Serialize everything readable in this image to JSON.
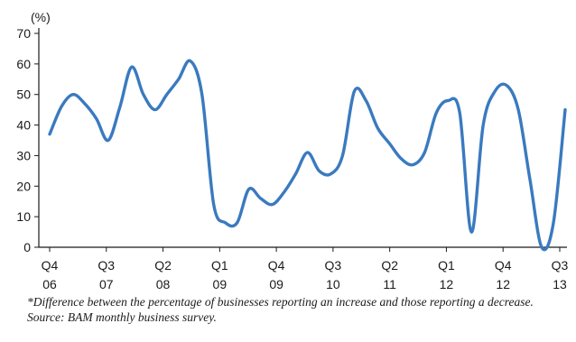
{
  "chart_data": {
    "type": "line",
    "ylabel": "(%)",
    "ylim": [
      0,
      70
    ],
    "yticks": [
      0,
      10,
      20,
      30,
      40,
      50,
      60,
      70
    ],
    "x_tick_labels": [
      {
        "top": "Q4",
        "bottom": "06"
      },
      {
        "top": "Q3",
        "bottom": "07"
      },
      {
        "top": "Q2",
        "bottom": "08"
      },
      {
        "top": "Q1",
        "bottom": "09"
      },
      {
        "top": "Q4",
        "bottom": "09"
      },
      {
        "top": "Q3",
        "bottom": "10"
      },
      {
        "top": "Q2",
        "bottom": "11"
      },
      {
        "top": "Q1",
        "bottom": "12"
      },
      {
        "top": "Q4",
        "bottom": "12"
      },
      {
        "top": "Q3",
        "bottom": "13"
      }
    ],
    "series": [
      {
        "color": "#3a7abf",
        "values": [
          37,
          46,
          50,
          47,
          42,
          35,
          46,
          59,
          50,
          45,
          50,
          55,
          61,
          50,
          14,
          8,
          8,
          19,
          16,
          14,
          18,
          24,
          31,
          25,
          24,
          30,
          51,
          48,
          39,
          34,
          29,
          27,
          31,
          44,
          48,
          44,
          5,
          40,
          51,
          53,
          45,
          22,
          0,
          8,
          45
        ]
      }
    ],
    "grid": false
  },
  "notes": {
    "footnote": "*Difference between the percentage of businesses reporting an increase and those reporting a decrease.",
    "source": "Source: BAM monthly business survey."
  }
}
